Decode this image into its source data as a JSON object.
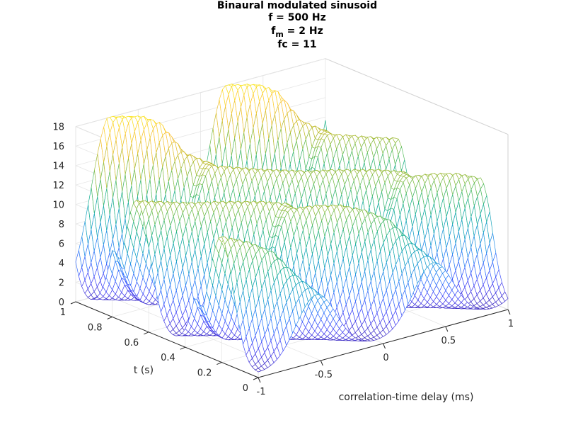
{
  "chart_data": {
    "type": "surface-mesh",
    "title_lines": [
      "Binaural modulated sinusoid",
      "f = 500 Hz",
      "fc = 11"
    ],
    "title_fm": {
      "base": "f",
      "sub": "m",
      "rest": " = 2 Hz"
    },
    "xlabel": "correlation-time delay (ms)",
    "ylabel": "t (s)",
    "zlabel": "",
    "xlim": [
      -1,
      1
    ],
    "ylim": [
      0,
      1
    ],
    "zlim": [
      0,
      18
    ],
    "xticks": [
      -1,
      -0.5,
      0,
      0.5,
      1
    ],
    "xticklabels": [
      "-1",
      "-0.5",
      "0",
      "0.5",
      "1"
    ],
    "yticks": [
      0,
      0.2,
      0.4,
      0.6,
      0.8,
      1
    ],
    "yticklabels": [
      "0",
      "0.2",
      "0.4",
      "0.6",
      "0.8",
      "1"
    ],
    "zticks": [
      0,
      2,
      4,
      6,
      8,
      10,
      12,
      14,
      16,
      18
    ],
    "zticklabels": [
      "0",
      "2",
      "4",
      "6",
      "8",
      "10",
      "12",
      "14",
      "16",
      "18"
    ],
    "grid": true,
    "colormap": "parula",
    "colormap_stops": [
      "#3e26a8",
      "#4743f8",
      "#2f79fe",
      "#199ad7",
      "#0fae99",
      "#5bbe5b",
      "#c5bb29",
      "#fec338",
      "#f9e721"
    ],
    "surface": {
      "delay_ms": [
        -1,
        -0.95,
        -0.9,
        -0.85,
        -0.8,
        -0.75,
        -0.7,
        -0.65,
        -0.6,
        -0.55,
        -0.5,
        -0.45,
        -0.4,
        -0.35,
        -0.3,
        -0.25,
        -0.2,
        -0.15,
        -0.1,
        -0.05,
        0,
        0.05,
        0.1,
        0.15,
        0.2,
        0.25,
        0.3,
        0.35,
        0.4,
        0.45,
        0.5,
        0.55,
        0.6,
        0.65,
        0.7,
        0.75,
        0.8,
        0.85,
        0.9,
        0.95,
        1
      ],
      "time_s": [
        0,
        0.05,
        0.1,
        0.15,
        0.2,
        0.25,
        0.3,
        0.35,
        0.4,
        0.45,
        0.5,
        0.55,
        0.6,
        0.65,
        0.7,
        0.75,
        0.8,
        0.85,
        0.9,
        0.95,
        1
      ],
      "peak_delay_ms": [
        0.4,
        0.285,
        0.17,
        0.055,
        -0.06,
        -0.175,
        -0.29,
        0.655,
        0.54,
        0.425,
        0.31,
        0.195,
        0.08,
        -0.035,
        -0.15,
        -0.265,
        0.68,
        0.565,
        0.45,
        0.335,
        0.22
      ],
      "peak_height": [
        6.5,
        8.5,
        11,
        12,
        12.5,
        12.5,
        12.2,
        12.3,
        12.5,
        12.5,
        12.5,
        12.4,
        12.5,
        12.6,
        12.8,
        13,
        13,
        14,
        17,
        18,
        18
      ],
      "peak_width_ms": 0.16,
      "baseline": 0.4
    }
  }
}
